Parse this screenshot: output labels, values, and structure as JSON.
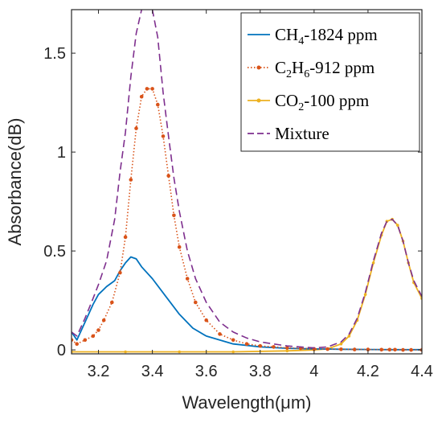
{
  "chart_data": {
    "type": "line",
    "xlabel": "Wavelength(μm)",
    "ylabel": "Absorbance(dB)",
    "xlim": [
      3.1,
      4.4
    ],
    "ylim": [
      -0.02,
      1.72
    ],
    "x_ticks": [
      "3.2",
      "3.4",
      "3.6",
      "3.8",
      "4",
      "4.2",
      "4.4"
    ],
    "x_tick_values": [
      3.2,
      3.4,
      3.6,
      3.8,
      4.0,
      4.2,
      4.4
    ],
    "y_ticks": [
      "0",
      "0.5",
      "1",
      "1.5"
    ],
    "y_tick_values": [
      0,
      0.5,
      1,
      1.5
    ],
    "grid": false,
    "legend_position": "top-right",
    "series": [
      {
        "name": "CH4-1824 ppm",
        "label_parts": {
          "base": "CH",
          "sub": "4",
          "rest": "-1824 ppm"
        },
        "color": "#0072BD",
        "style": "solid",
        "x": [
          3.1,
          3.12,
          3.15,
          3.18,
          3.2,
          3.23,
          3.26,
          3.28,
          3.3,
          3.32,
          3.34,
          3.36,
          3.4,
          3.45,
          3.5,
          3.55,
          3.6,
          3.7,
          3.8,
          3.9,
          4.0,
          4.1,
          4.2,
          4.3,
          4.4
        ],
        "y": [
          0.09,
          0.05,
          0.14,
          0.23,
          0.28,
          0.32,
          0.35,
          0.4,
          0.44,
          0.47,
          0.46,
          0.42,
          0.36,
          0.27,
          0.18,
          0.11,
          0.07,
          0.03,
          0.015,
          0.008,
          0.005,
          0.003,
          0.002,
          0.001,
          0.001
        ]
      },
      {
        "name": "C2H6-912 ppm",
        "label_parts": {
          "base": "C",
          "sub": "2",
          "mid": "H",
          "sub2": "6",
          "rest": "-912 ppm"
        },
        "color": "#D95319",
        "style": "dotted-markers",
        "x": [
          3.1,
          3.12,
          3.15,
          3.18,
          3.2,
          3.22,
          3.25,
          3.28,
          3.3,
          3.32,
          3.34,
          3.36,
          3.38,
          3.4,
          3.42,
          3.44,
          3.46,
          3.48,
          3.5,
          3.53,
          3.56,
          3.6,
          3.65,
          3.7,
          3.75,
          3.8,
          3.85,
          3.9,
          3.95,
          4.0,
          4.05,
          4.1,
          4.15,
          4.2,
          4.25,
          4.28,
          4.3,
          4.33,
          4.36,
          4.4
        ],
        "y": [
          0.05,
          0.03,
          0.05,
          0.07,
          0.1,
          0.15,
          0.24,
          0.39,
          0.57,
          0.86,
          1.12,
          1.28,
          1.32,
          1.32,
          1.24,
          1.08,
          0.88,
          0.68,
          0.52,
          0.36,
          0.24,
          0.15,
          0.08,
          0.05,
          0.03,
          0.02,
          0.015,
          0.01,
          0.008,
          0.005,
          0.004,
          0.003,
          0.002,
          0.002,
          0.001,
          0.001,
          0.001,
          0.0,
          0.0,
          0.0
        ]
      },
      {
        "name": "CO2-100 ppm",
        "label_parts": {
          "base": "CO",
          "sub": "2",
          "rest": "-100 ppm"
        },
        "color": "#EDB120",
        "style": "solid-markers",
        "x": [
          3.1,
          3.3,
          3.5,
          3.7,
          3.9,
          4.0,
          4.05,
          4.1,
          4.13,
          4.16,
          4.19,
          4.22,
          4.25,
          4.27,
          4.29,
          4.31,
          4.33,
          4.35,
          4.37,
          4.4
        ],
        "y": [
          -0.01,
          -0.01,
          -0.01,
          -0.01,
          -0.005,
          0.0,
          0.005,
          0.03,
          0.07,
          0.15,
          0.28,
          0.44,
          0.58,
          0.65,
          0.66,
          0.63,
          0.55,
          0.44,
          0.34,
          0.26
        ]
      },
      {
        "name": "Mixture",
        "label_parts": {
          "base": "Mixture"
        },
        "color": "#7E2F8E",
        "style": "dashed",
        "x": [
          3.1,
          3.12,
          3.15,
          3.18,
          3.2,
          3.23,
          3.26,
          3.28,
          3.3,
          3.32,
          3.34,
          3.36,
          3.38,
          3.4,
          3.42,
          3.44,
          3.46,
          3.48,
          3.5,
          3.53,
          3.56,
          3.6,
          3.65,
          3.7,
          3.75,
          3.8,
          3.85,
          3.9,
          3.95,
          4.0,
          4.05,
          4.1,
          4.13,
          4.16,
          4.19,
          4.22,
          4.25,
          4.27,
          4.29,
          4.31,
          4.33,
          4.35,
          4.37,
          4.4
        ],
        "y": [
          0.09,
          0.07,
          0.16,
          0.26,
          0.33,
          0.45,
          0.66,
          0.9,
          1.1,
          1.38,
          1.6,
          1.72,
          1.76,
          1.72,
          1.58,
          1.3,
          1.08,
          0.87,
          0.7,
          0.5,
          0.36,
          0.24,
          0.14,
          0.09,
          0.06,
          0.04,
          0.03,
          0.02,
          0.015,
          0.01,
          0.015,
          0.04,
          0.08,
          0.16,
          0.29,
          0.45,
          0.59,
          0.65,
          0.66,
          0.63,
          0.55,
          0.44,
          0.35,
          0.27
        ]
      }
    ]
  }
}
